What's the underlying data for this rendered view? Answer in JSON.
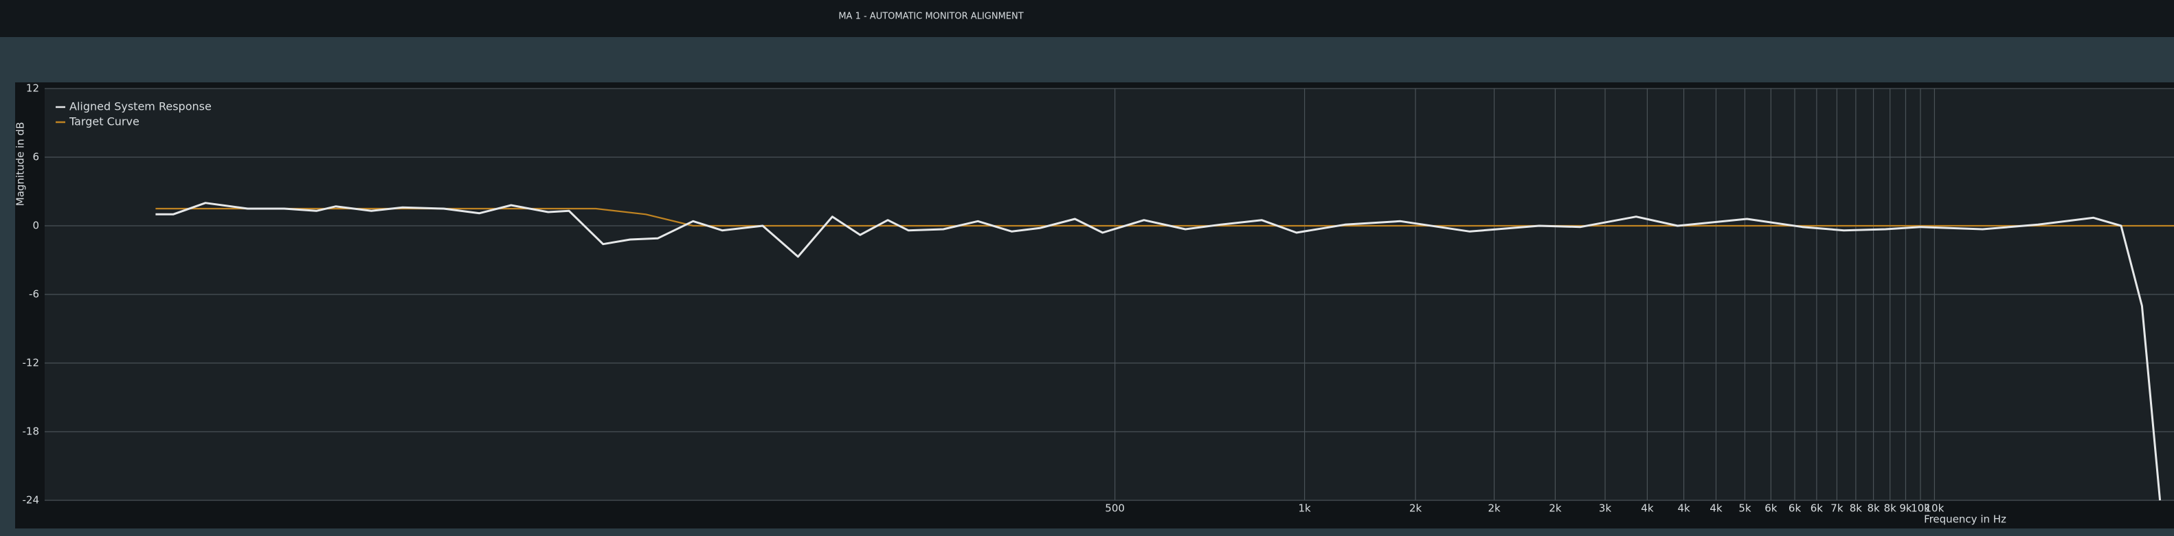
{
  "window": {
    "title": "MA 1 - AUTOMATIC MONITOR ALIGNMENT"
  },
  "chart_data": {
    "type": "line",
    "xlabel": "Frequency in Hz",
    "ylabel": "Magnitude in dB",
    "xscale": "log",
    "grid": true,
    "legend": "upper left",
    "xlim": [
      10,
      24000
    ],
    "ylim": [
      -24,
      12
    ],
    "yticks": [
      12,
      6,
      0,
      -6,
      -12,
      -18,
      -24
    ],
    "xticks": [
      500,
      {
        "value": 1000,
        "label": "1k"
      },
      {
        "value": 1500,
        "label": "2k"
      },
      {
        "value": 2000,
        "label": "2k"
      },
      {
        "value": 2500,
        "label": "2k"
      },
      {
        "value": 3000,
        "label": "3k"
      },
      {
        "value": 3500,
        "label": "4k"
      },
      {
        "value": 4000,
        "label": "4k"
      },
      {
        "value": 4500,
        "label": "4k"
      },
      {
        "value": 5000,
        "label": "5k"
      },
      {
        "value": 5500,
        "label": "6k"
      },
      {
        "value": 6000,
        "label": "6k"
      },
      {
        "value": 6500,
        "label": "6k"
      },
      {
        "value": 7000,
        "label": "7k"
      },
      {
        "value": 7500,
        "label": "8k"
      },
      {
        "value": 8000,
        "label": "8k"
      },
      {
        "value": 8500,
        "label": "8k"
      },
      {
        "value": 9000,
        "label": "9k"
      },
      {
        "value": 9500,
        "label": "10k"
      },
      {
        "value": 10000,
        "label": "10k"
      }
    ],
    "series": [
      {
        "name": "Aligned System Response",
        "color": "#e6e8e9",
        "x": [
          15,
          16,
          18,
          21,
          24,
          27,
          29,
          33,
          37,
          43,
          49,
          55,
          63,
          68,
          77,
          85,
          94,
          107,
          119,
          138,
          157,
          178,
          197,
          218,
          235,
          267,
          303,
          343,
          380,
          432,
          478,
          556,
          647,
          735,
          855,
          971,
          1159,
          1420,
          1829,
          2357,
          2742,
          3360,
          3910,
          5040,
          6170,
          7180,
          8360,
          9490,
          11920,
          14600,
          17880,
          19780,
          21350,
          22800
        ],
        "values": [
          1.0,
          1.0,
          2.0,
          1.5,
          1.5,
          1.3,
          1.7,
          1.3,
          1.6,
          1.5,
          1.1,
          1.8,
          1.2,
          1.3,
          -1.6,
          -1.2,
          -1.1,
          0.4,
          -0.4,
          0,
          -2.7,
          0.8,
          -0.8,
          0.5,
          -0.4,
          -0.3,
          0.4,
          -0.5,
          -0.2,
          0.6,
          -0.6,
          0.5,
          -0.3,
          0.1,
          0.5,
          -0.6,
          0.1,
          0.4,
          -0.5,
          0,
          -0.1,
          0.8,
          0,
          0.6,
          -0.1,
          -0.4,
          -0.3,
          -0.1,
          -0.3,
          0.1,
          0.7,
          0,
          -7,
          -24
        ]
      },
      {
        "name": "Target Curve",
        "color": "#c08422",
        "x": [
          15,
          75,
          90,
          107,
          24000
        ],
        "values": [
          1.5,
          1.5,
          1.0,
          0,
          0
        ]
      }
    ]
  }
}
